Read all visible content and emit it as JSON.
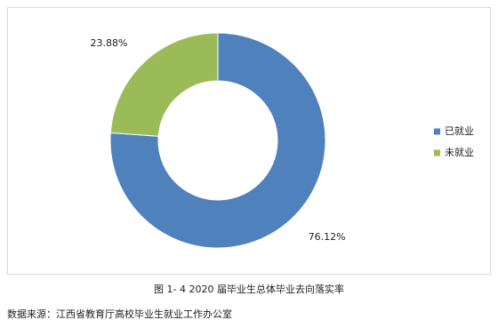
{
  "chart_data": {
    "type": "donut",
    "categories": [
      "已就业",
      "未就业"
    ],
    "series": [
      {
        "name": "2020",
        "values": [
          76.12,
          23.88
        ],
        "value_labels": [
          "76.12%",
          "23.88%"
        ]
      }
    ],
    "colors": [
      "#4f81bd",
      "#9bbb59"
    ],
    "legend": "right",
    "caption": "图 1- 4   2020 届毕业生总体毕业去向落实率",
    "source": "数据来源：江西省教育厅高校毕业生就业工作办公室"
  }
}
